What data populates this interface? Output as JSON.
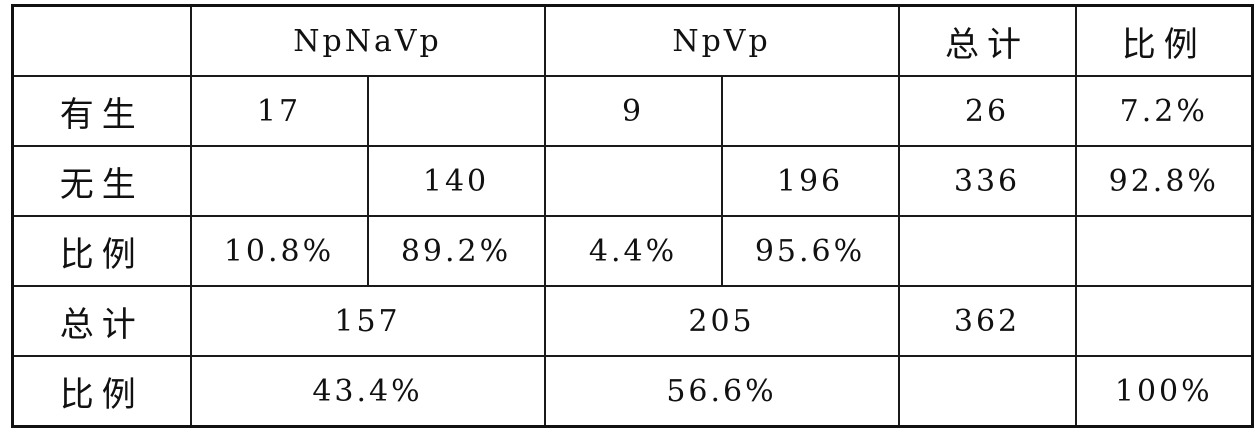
{
  "header": {
    "corner": "",
    "group1": "NpNaVp",
    "group2": "NpVp",
    "total": "总计",
    "ratio": "比例"
  },
  "rows": [
    {
      "label": "有生",
      "cells": [
        "17",
        "",
        "9",
        "",
        "26",
        "7.2%"
      ]
    },
    {
      "label": "无生",
      "cells": [
        "",
        "140",
        "",
        "196",
        "336",
        "92.8%"
      ]
    },
    {
      "label": "比例",
      "cells": [
        "10.8%",
        "89.2%",
        "4.4%",
        "95.6%",
        "",
        ""
      ]
    }
  ],
  "total_row": {
    "label": "总计",
    "group1": "157",
    "group2": "205",
    "total": "362",
    "ratio": ""
  },
  "ratio_row": {
    "label": "比例",
    "group1": "43.4%",
    "group2": "56.6%",
    "total": "",
    "ratio": "100%"
  }
}
